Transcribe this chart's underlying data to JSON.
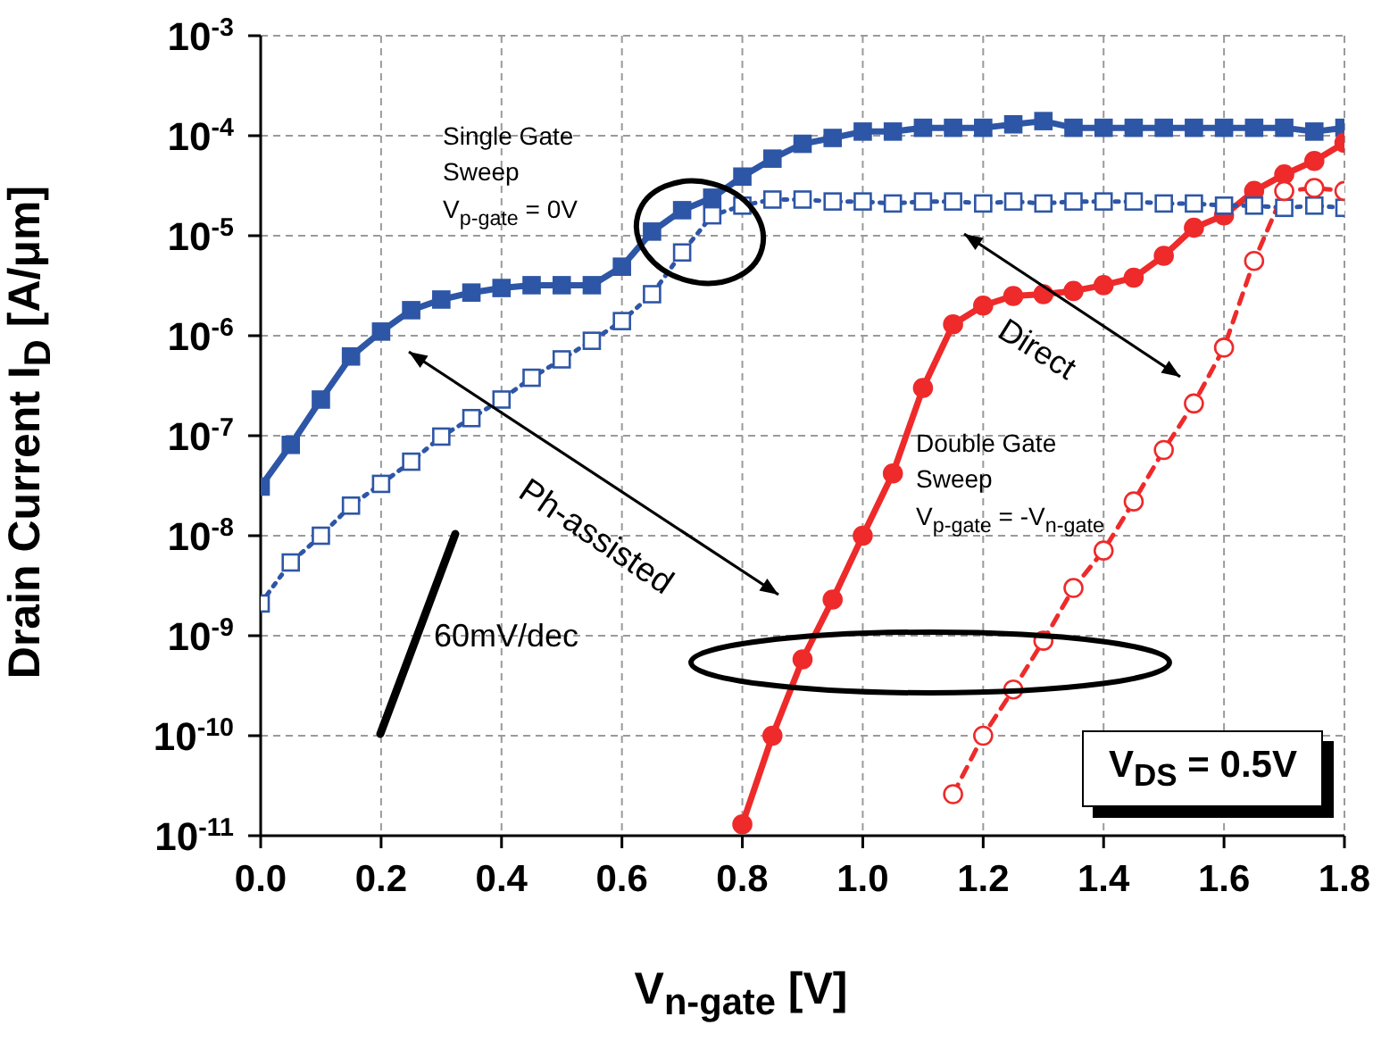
{
  "chart_data": {
    "type": "line",
    "xlabel": "V$_{n-gate}$ [V]",
    "ylabel": "Drain Current I$_{D}$ [A/μm]",
    "log": "y",
    "xlim": [
      0,
      1.8
    ],
    "xticks": [
      {
        "value": 0,
        "label": "0.0"
      },
      {
        "value": 0.2,
        "label": "0.2"
      },
      {
        "value": 0.4,
        "label": "0.4"
      },
      {
        "value": 0.6,
        "label": "0.6"
      },
      {
        "value": 0.8,
        "label": "0.8"
      },
      {
        "value": 1,
        "label": "1.0"
      },
      {
        "value": 1.2,
        "label": "1.2"
      },
      {
        "value": 1.4,
        "label": "1.4"
      },
      {
        "value": 1.6,
        "label": "1.6"
      },
      {
        "value": 1.8,
        "label": "1.8"
      }
    ],
    "ylim": [
      1e-11,
      0.001
    ],
    "yticks": [
      {
        "value": 1e-11,
        "label": "10$^{-11}$"
      },
      {
        "value": 1e-10,
        "label": "10$^{-10}$"
      },
      {
        "value": 1e-09,
        "label": "10$^{-9}$"
      },
      {
        "value": 1e-08,
        "label": "10$^{-8}$"
      },
      {
        "value": 1e-07,
        "label": "10$^{-7}$"
      },
      {
        "value": 1e-06,
        "label": "10$^{-6}$"
      },
      {
        "value": 1e-05,
        "label": "10$^{-5}$"
      },
      {
        "value": 0.0001,
        "label": "10$^{-4}$"
      },
      {
        "value": 0.001,
        "label": "10$^{-3}$"
      }
    ],
    "grid": true,
    "series": [
      {
        "color": "#2e56a6",
        "marker": "square",
        "line_style": "solid",
        "x": [
          0,
          0.05,
          0.1,
          0.15,
          0.2,
          0.25,
          0.3,
          0.35,
          0.4,
          0.45,
          0.5,
          0.55,
          0.6,
          0.65,
          0.7,
          0.75,
          0.8,
          0.85,
          0.9,
          0.95,
          1,
          1.05,
          1.1,
          1.15,
          1.2,
          1.25,
          1.3,
          1.35,
          1.4,
          1.45,
          1.5,
          1.55,
          1.6,
          1.65,
          1.7,
          1.75,
          1.8
        ],
        "values": [
          3.1e-08,
          8.1e-08,
          2.3e-07,
          6.2e-07,
          1.1e-06,
          1.8e-06,
          2.3e-06,
          2.7e-06,
          3e-06,
          3.2e-06,
          3.2e-06,
          3.2e-06,
          4.9e-06,
          1.1e-05,
          1.8e-05,
          2.4e-05,
          3.9e-05,
          5.9e-05,
          8.3e-05,
          9.5e-05,
          0.00011,
          0.00011,
          0.00012,
          0.00012,
          0.00012,
          0.00013,
          0.00014,
          0.00012,
          0.00012,
          0.00012,
          0.00012,
          0.00012,
          0.00012,
          0.00012,
          0.00012,
          0.00011,
          0.00012
        ]
      },
      {
        "color": "#2e56a6",
        "marker": "square",
        "line_style": "dotted",
        "x": [
          0,
          0.05,
          0.1,
          0.15,
          0.2,
          0.25,
          0.3,
          0.35,
          0.4,
          0.45,
          0.5,
          0.55,
          0.6,
          0.65,
          0.7,
          0.75,
          0.8,
          0.85,
          0.9,
          0.95,
          1,
          1.05,
          1.1,
          1.15,
          1.2,
          1.25,
          1.3,
          1.35,
          1.4,
          1.45,
          1.5,
          1.55,
          1.6,
          1.65,
          1.7,
          1.75,
          1.8
        ],
        "values": [
          2.1e-09,
          5.4e-09,
          1e-08,
          2e-08,
          3.3e-08,
          5.5e-08,
          9.8e-08,
          1.5e-07,
          2.3e-07,
          3.8e-07,
          5.8e-07,
          8.9e-07,
          1.4e-06,
          2.6e-06,
          6.8e-06,
          1.6e-05,
          2e-05,
          2.3e-05,
          2.3e-05,
          2.2e-05,
          2.2e-05,
          2.1e-05,
          2.2e-05,
          2.2e-05,
          2.1e-05,
          2.2e-05,
          2.1e-05,
          2.2e-05,
          2.2e-05,
          2.2e-05,
          2.1e-05,
          2.1e-05,
          2e-05,
          2e-05,
          1.9e-05,
          2e-05,
          1.9e-05
        ]
      },
      {
        "color": "#ee2a2a",
        "marker": "circle",
        "line_style": "solid",
        "x": [
          0.8,
          0.85,
          0.9,
          0.95,
          1,
          1.05,
          1.1,
          1.15,
          1.2,
          1.25,
          1.3,
          1.35,
          1.4,
          1.45,
          1.5,
          1.55,
          1.6,
          1.65,
          1.7,
          1.75,
          1.8
        ],
        "values": [
          1.3e-11,
          1e-10,
          5.8e-10,
          2.3e-09,
          1e-08,
          4.2e-08,
          3e-07,
          1.3e-06,
          2e-06,
          2.5e-06,
          2.6e-06,
          2.8e-06,
          3.2e-06,
          3.8e-06,
          6.3e-06,
          1.2e-05,
          1.6e-05,
          2.8e-05,
          4.1e-05,
          5.6e-05,
          8.5e-05
        ]
      },
      {
        "color": "#ee2a2a",
        "marker": "circle",
        "line_style": "dashed",
        "x": [
          1.15,
          1.2,
          1.25,
          1.3,
          1.35,
          1.4,
          1.45,
          1.5,
          1.55,
          1.6,
          1.65,
          1.7,
          1.75,
          1.8
        ],
        "values": [
          2.6e-11,
          1e-10,
          2.9e-10,
          8.9e-10,
          3e-09,
          7.1e-09,
          2.2e-08,
          7.2e-08,
          2.1e-07,
          7.6e-07,
          5.6e-06,
          2.8e-05,
          3e-05,
          2.8e-05
        ]
      }
    ],
    "annotations": [
      "Single Gate\nSweep\nV$_{p-gate}$ = 0V",
      "Double Gate\nSweep\nV$_{p-gate}$ = -V$_{n-gate}$",
      "Direct",
      "Ph-assisted",
      "60mV/dec",
      "V$_{DS}$ = 0.5V"
    ]
  }
}
